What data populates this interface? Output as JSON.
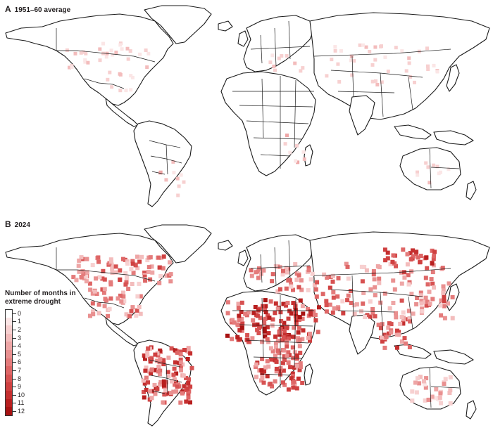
{
  "panels": [
    {
      "letter": "A",
      "caption": "1951–60 average"
    },
    {
      "letter": "B",
      "caption": "2024"
    }
  ],
  "legend": {
    "title_line1": "Number of months in",
    "title_line2": "extreme drought",
    "ticks": [
      "0",
      "1",
      "2",
      "3",
      "4",
      "5",
      "6",
      "7",
      "8",
      "9",
      "10",
      "11",
      "12"
    ],
    "colors": [
      "#ffffff",
      "#fbe6e6",
      "#f7d0d0",
      "#f3bcbc",
      "#eea6a6",
      "#e99090",
      "#e47b7b",
      "#de6666",
      "#d75252",
      "#cf4040",
      "#c52f2f",
      "#b81f1f",
      "#a81212"
    ]
  },
  "map_layers": {
    "land_fill": "#ffffff",
    "border_color": "#1a1a1a",
    "drought_hue": "#c62828",
    "panel_a_drought_level": "sparse, mostly 1–3 months",
    "panel_b_drought_level": "widespread, up to 12 months"
  }
}
